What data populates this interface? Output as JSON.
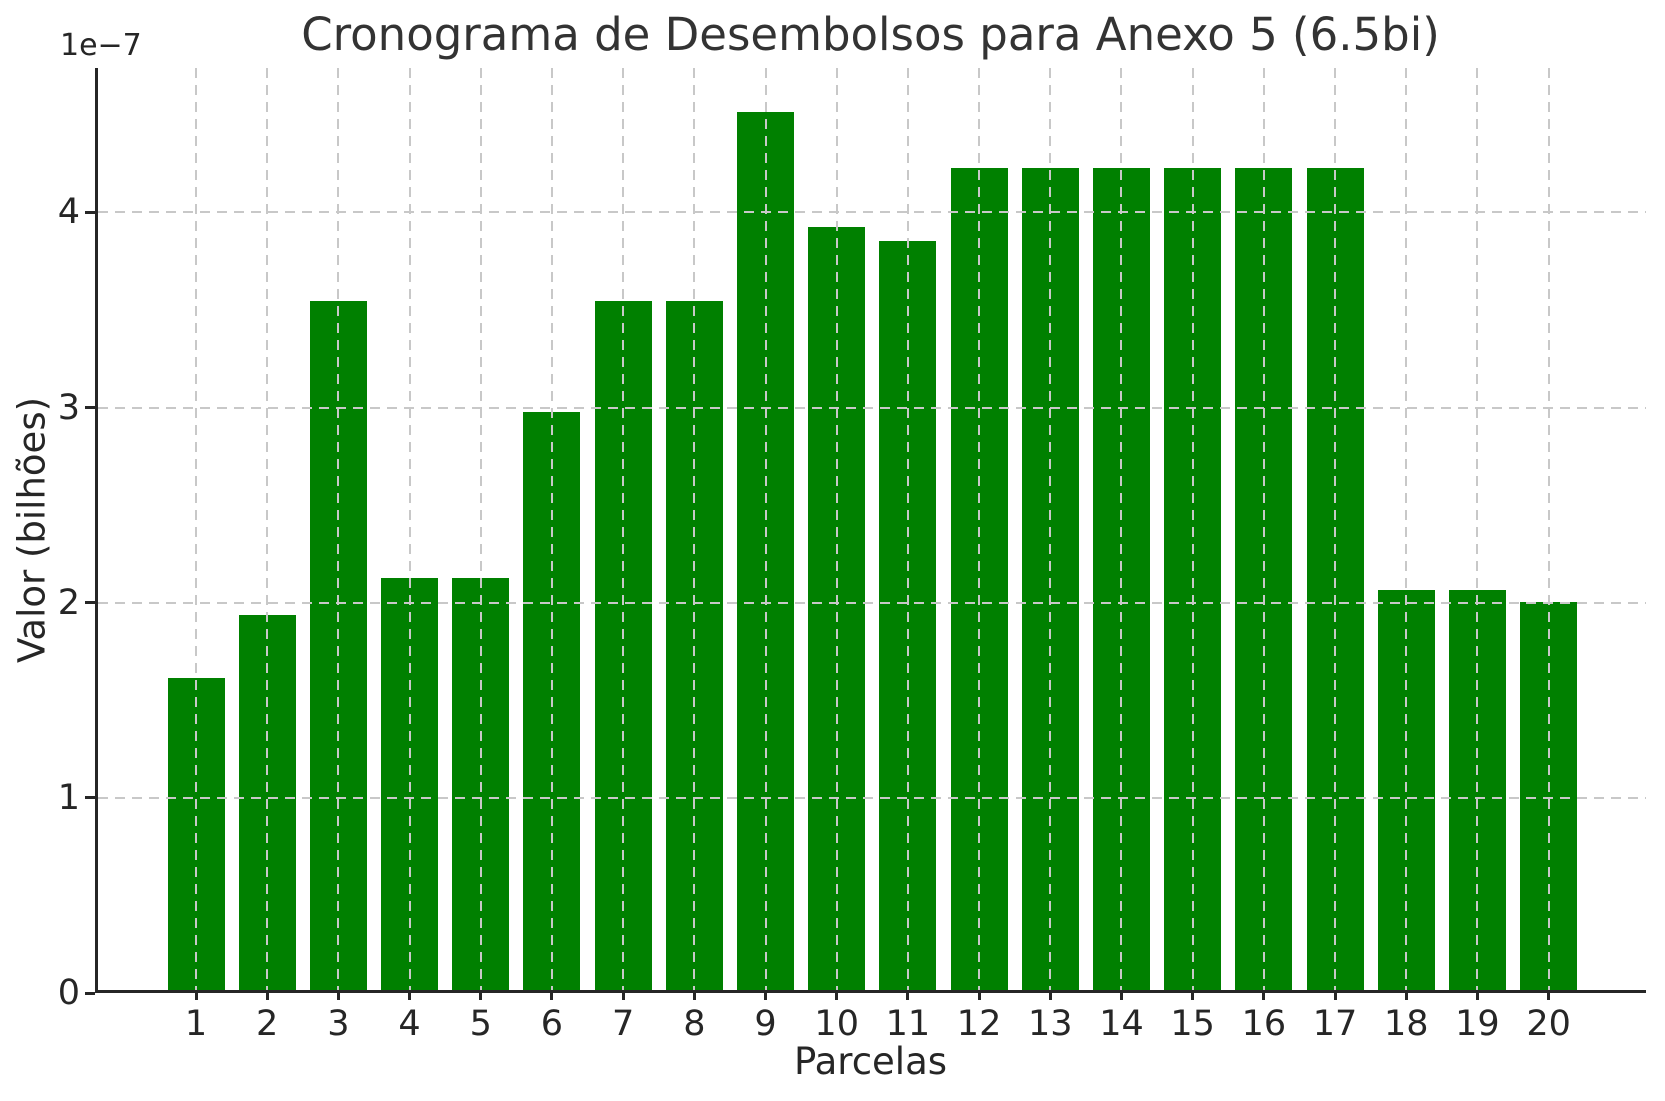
{
  "chart_data": {
    "type": "bar",
    "title": "Cronograma de Desembolsos para Anexo 5 (6.5bi)",
    "xlabel": "Parcelas",
    "ylabel": "Valor (bilhões)",
    "y_offset_text": "1e−7",
    "y_unit_multiplier": "1e-7",
    "categories": [
      "1",
      "2",
      "3",
      "4",
      "5",
      "6",
      "7",
      "8",
      "9",
      "10",
      "11",
      "12",
      "13",
      "14",
      "15",
      "16",
      "17",
      "18",
      "19",
      "20"
    ],
    "values": [
      1.6,
      1.92,
      3.53,
      2.11,
      2.11,
      2.96,
      3.53,
      3.53,
      4.5,
      3.91,
      3.84,
      4.21,
      4.21,
      4.21,
      4.21,
      4.21,
      4.21,
      2.05,
      2.05,
      1.99
    ],
    "ylim": [
      0,
      4.74
    ],
    "yticks": [
      0,
      1,
      2,
      3,
      4
    ],
    "ytick_labels": [
      "0",
      "1",
      "2",
      "3",
      "4"
    ],
    "grid": "on",
    "grid_style": "dashed",
    "legend": "none",
    "bar_color": "#008000",
    "grid_color": "#c8c8c8",
    "spine_color": "#262626",
    "text_color": "#262626"
  }
}
